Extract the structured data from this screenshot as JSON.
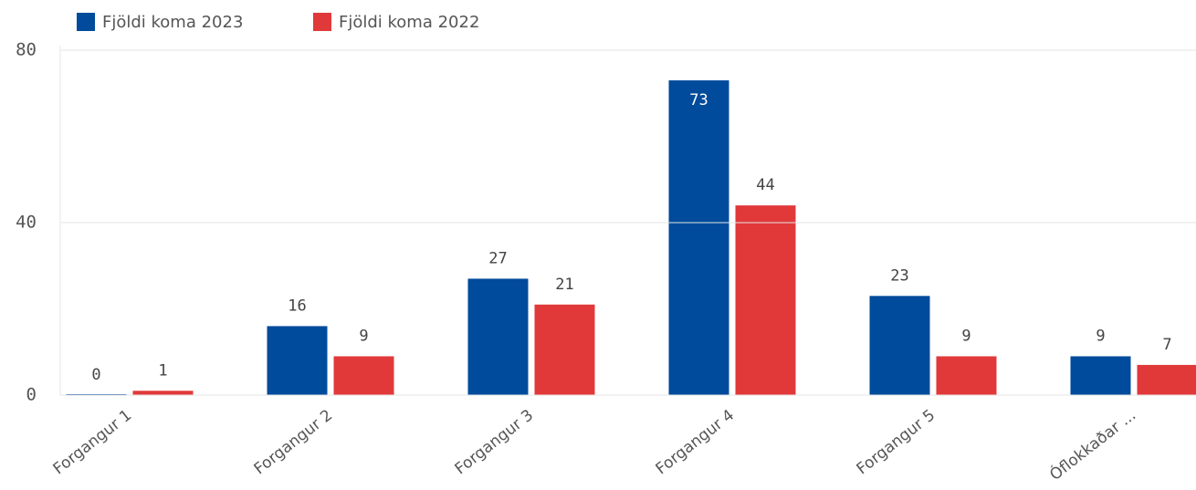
{
  "chart_data": {
    "type": "bar",
    "categories": [
      "Forgangur 1",
      "Forgangur 2",
      "Forgangur 3",
      "Forgangur 4",
      "Forgangur 5",
      "Óflokkaðar ..."
    ],
    "series": [
      {
        "name": "Fjöldi koma 2023",
        "color": "#004b9b",
        "values": [
          0,
          16,
          27,
          73,
          23,
          9
        ]
      },
      {
        "name": "Fjöldi koma 2022",
        "color": "#e1393a",
        "values": [
          1,
          9,
          21,
          44,
          9,
          7
        ]
      }
    ],
    "ylim": [
      0,
      80
    ],
    "yticks": [
      0,
      40,
      80
    ],
    "grid": true,
    "legend": "top-left"
  }
}
